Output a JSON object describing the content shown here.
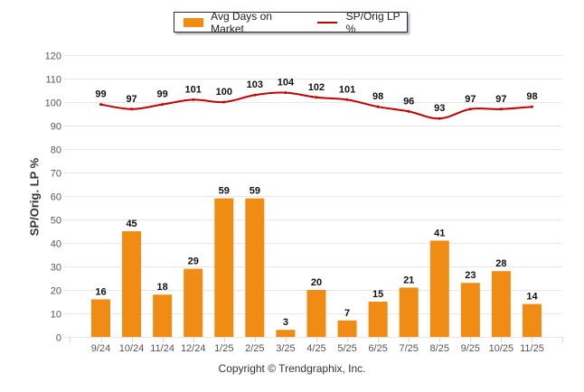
{
  "legend": {
    "bar_label": "Avg Days on Market",
    "line_label": "SP/Orig LP %"
  },
  "copyright": "Copyright © Trendgraphix, Inc.",
  "colors": {
    "bar": "#F08C14",
    "line": "#C00000",
    "grid": "#e6e6e6",
    "legend_border": "#1f2d4f"
  },
  "chart_data": {
    "type": "bar",
    "title": "",
    "xlabel": "",
    "ylabel": "SP/Orig. LP %",
    "ylim": [
      0,
      120
    ],
    "yticks": [
      0,
      10,
      20,
      30,
      40,
      50,
      60,
      70,
      80,
      90,
      100,
      110,
      120
    ],
    "grid": true,
    "legend_position": "top-center",
    "categories": [
      "9/24",
      "10/24",
      "11/24",
      "12/24",
      "1/25",
      "2/25",
      "3/25",
      "4/25",
      "5/25",
      "6/25",
      "7/25",
      "8/25",
      "9/25",
      "10/25",
      "11/25"
    ],
    "series": [
      {
        "name": "Avg Days on Market",
        "type": "bar",
        "values": [
          16,
          45,
          18,
          29,
          59,
          59,
          3,
          20,
          7,
          15,
          21,
          41,
          23,
          28,
          14
        ]
      },
      {
        "name": "SP/Orig LP %",
        "type": "line",
        "values": [
          99,
          97,
          99,
          101,
          100,
          103,
          104,
          102,
          101,
          98,
          96,
          93,
          97,
          97,
          98
        ]
      }
    ]
  }
}
